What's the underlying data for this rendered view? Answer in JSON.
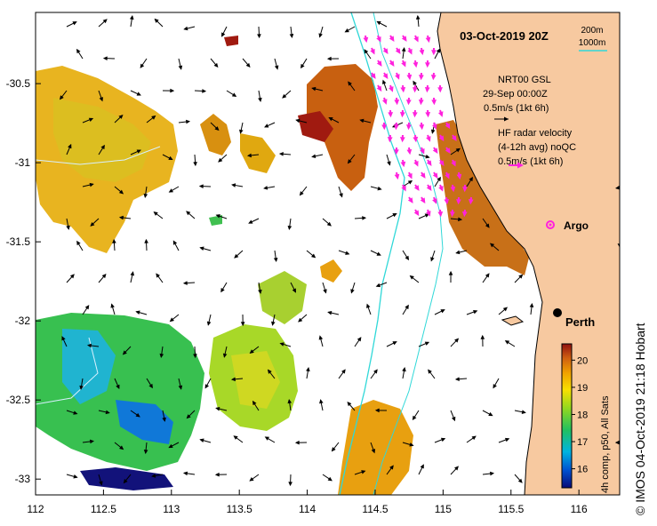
{
  "map": {
    "title": "03-Oct-2019 20Z",
    "credit": "© IMOS 04-Oct-2019 21:18 Hobart",
    "lon_ticks": [
      "112",
      "112.5",
      "113",
      "113.5",
      "114",
      "114.5",
      "115",
      "115.5",
      "116"
    ],
    "lat_ticks": [
      "-30.5",
      "-31",
      "-31.5",
      "-32",
      "-32.5",
      "-33"
    ],
    "lon_range": [
      112,
      116.3
    ],
    "lat_range": [
      -33.1,
      -30.05
    ]
  },
  "legend": {
    "isobath_200": "200m",
    "isobath_1000": "1000m",
    "model_title": "NRT00 GSL",
    "model_time": "29-Sep 00:00Z",
    "model_scale": "0.5m/s (1kt 6h)",
    "radar_title": "HF radar velocity",
    "radar_sub": "(4-12h avg) noQC",
    "radar_scale": "0.5m/s (1kt 6h)",
    "argo_label": "Argo",
    "city_label": "Perth"
  },
  "colorbar": {
    "label": "4h comp, p50, All Sats",
    "ticks": [
      "20",
      "19",
      "18",
      "17",
      "16"
    ],
    "range": [
      15.3,
      20.6
    ]
  },
  "colors": {
    "land": "#f7c9a0",
    "isobath_200": "#30d8d8",
    "radar_arrow": "#ff22dd",
    "argo": "#ff22dd"
  }
}
